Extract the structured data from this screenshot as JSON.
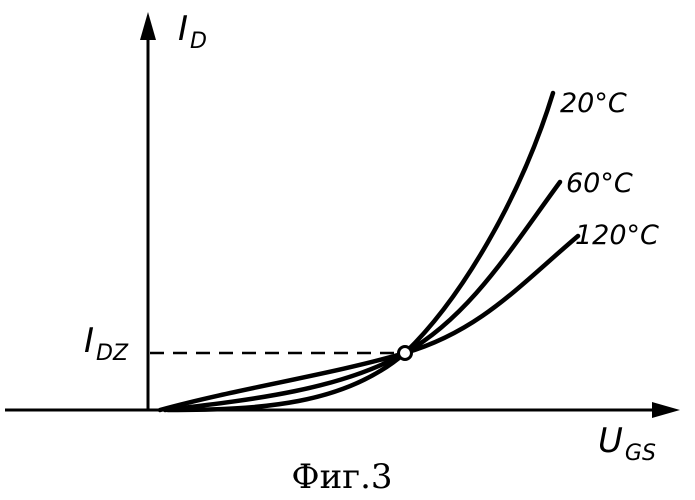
{
  "figure": {
    "caption": "Фиг.3",
    "y_axis": {
      "main": "I",
      "sub": "D"
    },
    "x_axis": {
      "main": "U",
      "sub": "GS"
    },
    "level": {
      "main": "I",
      "sub": "DZ"
    },
    "curves": [
      {
        "label": "20°C"
      },
      {
        "label": "60°C"
      },
      {
        "label": "120°C"
      }
    ]
  }
}
